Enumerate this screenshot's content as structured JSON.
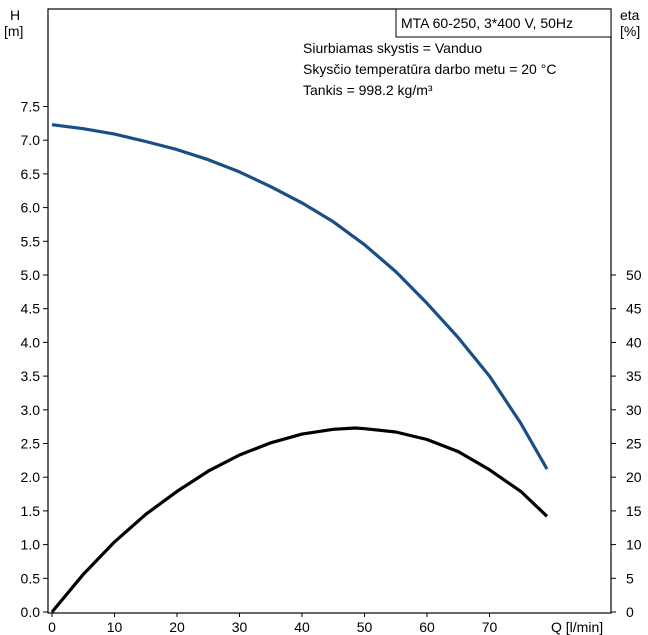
{
  "chart_data": {
    "type": "line",
    "title_box": "MTA 60-250, 3*400 V, 50Hz",
    "annotations": [
      "Siurbiamas skystis = Vanduo",
      "Skysčio temperatūra darbo metu = 20 °C",
      "Tankis = 998.2 kg/m³"
    ],
    "y_left": {
      "label_line1": "H",
      "label_line2": "[m]",
      "range": [
        0,
        7.5
      ],
      "ticks": [
        "0.0",
        "0.5",
        "1.0",
        "1.5",
        "2.0",
        "2.5",
        "3.0",
        "3.5",
        "4.0",
        "4.5",
        "5.0",
        "5.5",
        "6.0",
        "6.5",
        "7.0",
        "7.5"
      ]
    },
    "y_right": {
      "label_line1": "eta",
      "label_line2": "[%]",
      "range": [
        0,
        50
      ],
      "ticks": [
        "0",
        "5",
        "10",
        "15",
        "20",
        "25",
        "30",
        "35",
        "40",
        "45",
        "50"
      ]
    },
    "x": {
      "label": "Q [l/min]",
      "range": [
        0,
        80
      ],
      "ticks": [
        "0",
        "10",
        "20",
        "30",
        "40",
        "50",
        "60",
        "70"
      ]
    },
    "series": [
      {
        "axis": "left",
        "color": "#1a4f86",
        "x": [
          0,
          5,
          10,
          15,
          20,
          25,
          30,
          35,
          40,
          45,
          50,
          55,
          60,
          65,
          70,
          75,
          79.2
        ],
        "y": [
          7.23,
          7.17,
          7.09,
          6.98,
          6.86,
          6.71,
          6.53,
          6.31,
          6.07,
          5.79,
          5.45,
          5.05,
          4.58,
          4.07,
          3.5,
          2.8,
          2.12
        ]
      },
      {
        "axis": "right",
        "color": "#000000",
        "x": [
          0,
          5,
          10,
          15,
          20,
          25,
          30,
          35,
          40,
          45,
          48.5,
          50,
          55,
          60,
          65,
          70,
          75,
          79.2
        ],
        "y": [
          0,
          5.6,
          10.4,
          14.5,
          17.9,
          20.9,
          23.3,
          25.1,
          26.4,
          27.1,
          27.3,
          27.2,
          26.7,
          25.6,
          23.8,
          21.1,
          17.9,
          14.2
        ]
      }
    ]
  }
}
